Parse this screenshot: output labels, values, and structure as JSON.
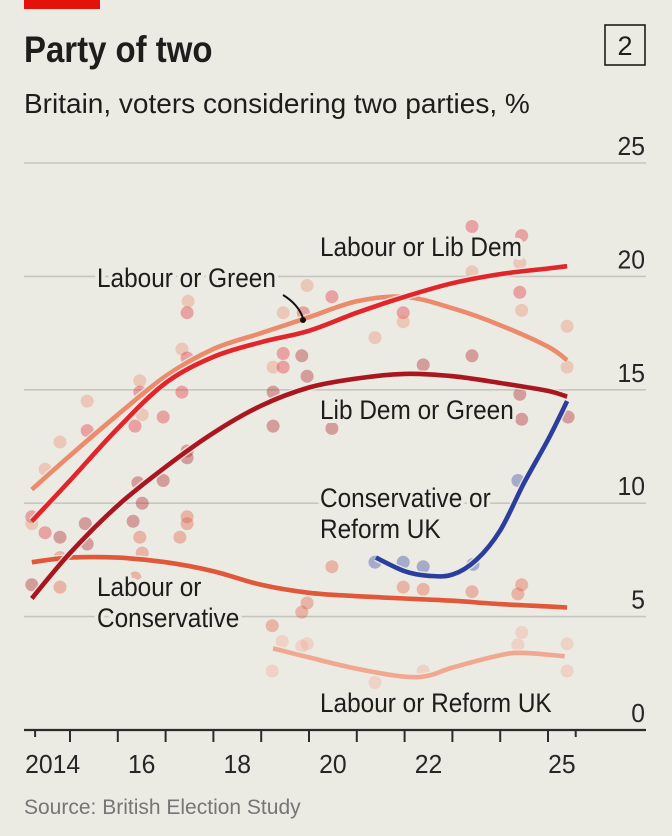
{
  "header": {
    "chart_number": "2",
    "title": "Party of two",
    "subtitle": "Britain, voters considering two parties, %"
  },
  "footer": {
    "source": "Source: British Election Study"
  },
  "colors": {
    "brand_red": "#e3120b"
  },
  "chart_data": {
    "type": "line",
    "title": "Party of two",
    "subtitle": "Britain, voters considering two parties, %",
    "xlabel": "",
    "ylabel": "",
    "x_range": [
      2014.27,
      2025.58
    ],
    "ylim": [
      0,
      25
    ],
    "yticks": [
      {
        "value": 0,
        "label": "0"
      },
      {
        "value": 5,
        "label": "5"
      },
      {
        "value": 10,
        "label": "10"
      },
      {
        "value": 15,
        "label": "15"
      },
      {
        "value": 20,
        "label": "20"
      },
      {
        "value": 25,
        "label": "25"
      }
    ],
    "xtick_boundaries": [
      2015,
      2016,
      2017,
      2018,
      2019,
      2020,
      2021,
      2022,
      2023,
      2024,
      2025
    ],
    "xtick_labels": [
      {
        "year": 2014,
        "label": "2014"
      },
      {
        "year": 2016,
        "label": "16"
      },
      {
        "year": 2018,
        "label": "18"
      },
      {
        "year": 2020,
        "label": "20"
      },
      {
        "year": 2022,
        "label": "22"
      },
      {
        "year": 2025,
        "label": "25"
      }
    ],
    "grid": true,
    "legend": "direct labels",
    "y_axis_side": "right",
    "series": [
      {
        "name": "Labour or Lib Dem",
        "label_lines": [
          "Labour or Lib Dem"
        ],
        "color": "#e1252b",
        "points": [
          [
            2014.2,
            9.2
          ],
          [
            2015,
            11.0
          ],
          [
            2016,
            13.3
          ],
          [
            2017,
            15.3
          ],
          [
            2018,
            16.45
          ],
          [
            2019,
            17.1
          ],
          [
            2020,
            17.6
          ],
          [
            2021,
            18.4
          ],
          [
            2022,
            19.1
          ],
          [
            2023,
            19.7
          ],
          [
            2024,
            20.1
          ],
          [
            2025,
            20.35
          ],
          [
            2025.4,
            20.45
          ]
        ]
      },
      {
        "name": "Labour or Green",
        "label_lines": [
          "Labour or Green"
        ],
        "color": "#ec8b6c",
        "points": [
          [
            2014.2,
            10.6
          ],
          [
            2015,
            12.1
          ],
          [
            2016,
            13.9
          ],
          [
            2017,
            15.6
          ],
          [
            2018,
            16.8
          ],
          [
            2019,
            17.5
          ],
          [
            2020,
            18.2
          ],
          [
            2021,
            18.9
          ],
          [
            2022,
            19.1
          ],
          [
            2023,
            18.6
          ],
          [
            2024,
            17.85
          ],
          [
            2025,
            16.9
          ],
          [
            2025.4,
            16.3
          ]
        ]
      },
      {
        "name": "Lib Dem or Green",
        "label_lines": [
          "Lib Dem or Green"
        ],
        "color": "#a9161f",
        "points": [
          [
            2014.2,
            5.8
          ],
          [
            2015,
            7.8
          ],
          [
            2016,
            9.9
          ],
          [
            2017,
            11.6
          ],
          [
            2018,
            13.1
          ],
          [
            2019,
            14.3
          ],
          [
            2020,
            15.1
          ],
          [
            2021,
            15.5
          ],
          [
            2022,
            15.7
          ],
          [
            2023,
            15.6
          ],
          [
            2024,
            15.3
          ],
          [
            2025,
            14.95
          ],
          [
            2025.4,
            14.7
          ]
        ]
      },
      {
        "name": "Conservative or Reform UK",
        "label_lines": [
          "Conservative or",
          "Reform UK"
        ],
        "color": "#2b3e9e",
        "points": [
          [
            2021.4,
            7.6
          ],
          [
            2022,
            7.0
          ],
          [
            2022.5,
            6.8
          ],
          [
            2023,
            6.85
          ],
          [
            2023.5,
            7.5
          ],
          [
            2024,
            8.8
          ],
          [
            2024.5,
            10.9
          ],
          [
            2025,
            12.8
          ],
          [
            2025.4,
            14.5
          ]
        ]
      },
      {
        "name": "Labour or Conservative",
        "label_lines": [
          "Labour or",
          "Conservative"
        ],
        "color": "#e0573a",
        "points": [
          [
            2014.2,
            7.4
          ],
          [
            2015,
            7.6
          ],
          [
            2016,
            7.6
          ],
          [
            2017,
            7.4
          ],
          [
            2018,
            7.0
          ],
          [
            2019,
            6.4
          ],
          [
            2020,
            6.05
          ],
          [
            2021,
            5.9
          ],
          [
            2022,
            5.8
          ],
          [
            2023,
            5.7
          ],
          [
            2024,
            5.55
          ],
          [
            2025,
            5.45
          ],
          [
            2025.4,
            5.4
          ]
        ]
      },
      {
        "name": "Labour or Reform UK",
        "label_lines": [
          "Labour or Reform UK"
        ],
        "color": "#f0a891",
        "points": [
          [
            2019.25,
            3.6
          ],
          [
            2020,
            3.2
          ],
          [
            2021,
            2.7
          ],
          [
            2022,
            2.35
          ],
          [
            2022.5,
            2.4
          ],
          [
            2023,
            2.75
          ],
          [
            2024,
            3.3
          ],
          [
            2024.5,
            3.4
          ],
          [
            2025.35,
            3.25
          ]
        ]
      }
    ],
    "survey_points": [
      {
        "s": 1,
        "x": 2015.36,
        "y": 14.5
      },
      {
        "s": 1,
        "x": 2016.46,
        "y": 15.4
      },
      {
        "s": 0,
        "x": 2016.46,
        "y": 14.9
      },
      {
        "s": 0,
        "x": 2017.34,
        "y": 14.9
      },
      {
        "s": 0,
        "x": 2015.36,
        "y": 13.2
      },
      {
        "s": 1,
        "x": 2014.79,
        "y": 12.7
      },
      {
        "s": 1,
        "x": 2016.51,
        "y": 13.9
      },
      {
        "s": 0,
        "x": 2016.36,
        "y": 13.4
      },
      {
        "s": 0,
        "x": 2016.95,
        "y": 13.8
      },
      {
        "s": 1,
        "x": 2014.48,
        "y": 11.5
      },
      {
        "s": 2,
        "x": 2017.45,
        "y": 12.0
      },
      {
        "s": 2,
        "x": 2017.45,
        "y": 12.3
      },
      {
        "s": 2,
        "x": 2016.95,
        "y": 11.0
      },
      {
        "s": 2,
        "x": 2016.42,
        "y": 10.9
      },
      {
        "s": 2,
        "x": 2016.51,
        "y": 10.0
      },
      {
        "s": 0,
        "x": 2014.2,
        "y": 9.4
      },
      {
        "s": 1,
        "x": 2014.2,
        "y": 9.1
      },
      {
        "s": 0,
        "x": 2014.48,
        "y": 8.7
      },
      {
        "s": 2,
        "x": 2014.79,
        "y": 8.5
      },
      {
        "s": 2,
        "x": 2015.32,
        "y": 9.1
      },
      {
        "s": 2,
        "x": 2015.36,
        "y": 8.2
      },
      {
        "s": 2,
        "x": 2016.32,
        "y": 9.2
      },
      {
        "s": 4,
        "x": 2016.46,
        "y": 8.5
      },
      {
        "s": 4,
        "x": 2016.51,
        "y": 7.8
      },
      {
        "s": 4,
        "x": 2017.3,
        "y": 8.5
      },
      {
        "s": 4,
        "x": 2017.45,
        "y": 9.4
      },
      {
        "s": 4,
        "x": 2017.45,
        "y": 9.1
      },
      {
        "s": 4,
        "x": 2014.79,
        "y": 7.6
      },
      {
        "s": 2,
        "x": 2014.2,
        "y": 6.4
      },
      {
        "s": 4,
        "x": 2014.79,
        "y": 6.3
      },
      {
        "s": 4,
        "x": 2016.36,
        "y": 6.7
      },
      {
        "s": 1,
        "x": 2017.47,
        "y": 18.9
      },
      {
        "s": 0,
        "x": 2017.45,
        "y": 18.4
      },
      {
        "s": 1,
        "x": 2019.96,
        "y": 19.6
      },
      {
        "s": 0,
        "x": 2020.48,
        "y": 19.1
      },
      {
        "s": 1,
        "x": 2019.46,
        "y": 18.4
      },
      {
        "s": 0,
        "x": 2019.88,
        "y": 18.4
      },
      {
        "s": 1,
        "x": 2021.38,
        "y": 17.3
      },
      {
        "s": 1,
        "x": 2017.34,
        "y": 16.8
      },
      {
        "s": 0,
        "x": 2017.45,
        "y": 16.4
      },
      {
        "s": 0,
        "x": 2019.46,
        "y": 16.6
      },
      {
        "s": 2,
        "x": 2019.85,
        "y": 16.5
      },
      {
        "s": 1,
        "x": 2019.25,
        "y": 16.0
      },
      {
        "s": 0,
        "x": 2019.46,
        "y": 16.0
      },
      {
        "s": 2,
        "x": 2019.96,
        "y": 15.6
      },
      {
        "s": 2,
        "x": 2019.25,
        "y": 14.9
      },
      {
        "s": 2,
        "x": 2019.25,
        "y": 13.4
      },
      {
        "s": 2,
        "x": 2020.48,
        "y": 13.3
      },
      {
        "s": 0,
        "x": 2023.41,
        "y": 22.2
      },
      {
        "s": 0,
        "x": 2024.45,
        "y": 21.8
      },
      {
        "s": 1,
        "x": 2024.41,
        "y": 20.6
      },
      {
        "s": 1,
        "x": 2023.41,
        "y": 20.2
      },
      {
        "s": 0,
        "x": 2024.41,
        "y": 19.3
      },
      {
        "s": 1,
        "x": 2024.45,
        "y": 18.5
      },
      {
        "s": 0,
        "x": 2021.97,
        "y": 18.4
      },
      {
        "s": 1,
        "x": 2021.97,
        "y": 18.0
      },
      {
        "s": 1,
        "x": 2025.4,
        "y": 17.8
      },
      {
        "s": 2,
        "x": 2023.41,
        "y": 16.5
      },
      {
        "s": 2,
        "x": 2022.39,
        "y": 16.1
      },
      {
        "s": 1,
        "x": 2025.4,
        "y": 16.0
      },
      {
        "s": 2,
        "x": 2024.41,
        "y": 14.8
      },
      {
        "s": 2,
        "x": 2024.45,
        "y": 13.7
      },
      {
        "s": 2,
        "x": 2025.42,
        "y": 13.8
      },
      {
        "s": 3,
        "x": 2021.38,
        "y": 7.4
      },
      {
        "s": 3,
        "x": 2021.97,
        "y": 7.4
      },
      {
        "s": 3,
        "x": 2022.39,
        "y": 7.2
      },
      {
        "s": 3,
        "x": 2023.43,
        "y": 7.3
      },
      {
        "s": 3,
        "x": 2024.37,
        "y": 11.0
      },
      {
        "s": 4,
        "x": 2020.48,
        "y": 7.2
      },
      {
        "s": 4,
        "x": 2021.97,
        "y": 6.3
      },
      {
        "s": 4,
        "x": 2022.39,
        "y": 6.2
      },
      {
        "s": 4,
        "x": 2023.41,
        "y": 6.1
      },
      {
        "s": 4,
        "x": 2024.45,
        "y": 6.4
      },
      {
        "s": 4,
        "x": 2024.37,
        "y": 6.0
      },
      {
        "s": 4,
        "x": 2019.96,
        "y": 5.6
      },
      {
        "s": 4,
        "x": 2019.85,
        "y": 5.2
      },
      {
        "s": 4,
        "x": 2019.23,
        "y": 4.6
      },
      {
        "s": 5,
        "x": 2019.44,
        "y": 3.9
      },
      {
        "s": 5,
        "x": 2019.96,
        "y": 3.8
      },
      {
        "s": 5,
        "x": 2019.85,
        "y": 3.7
      },
      {
        "s": 5,
        "x": 2019.23,
        "y": 2.6
      },
      {
        "s": 5,
        "x": 2024.45,
        "y": 4.3
      },
      {
        "s": 5,
        "x": 2024.37,
        "y": 3.75
      },
      {
        "s": 5,
        "x": 2025.4,
        "y": 3.8
      },
      {
        "s": 5,
        "x": 2025.4,
        "y": 2.6
      },
      {
        "s": 5,
        "x": 2021.38,
        "y": 2.1
      },
      {
        "s": 5,
        "x": 2022.39,
        "y": 2.6
      }
    ]
  }
}
